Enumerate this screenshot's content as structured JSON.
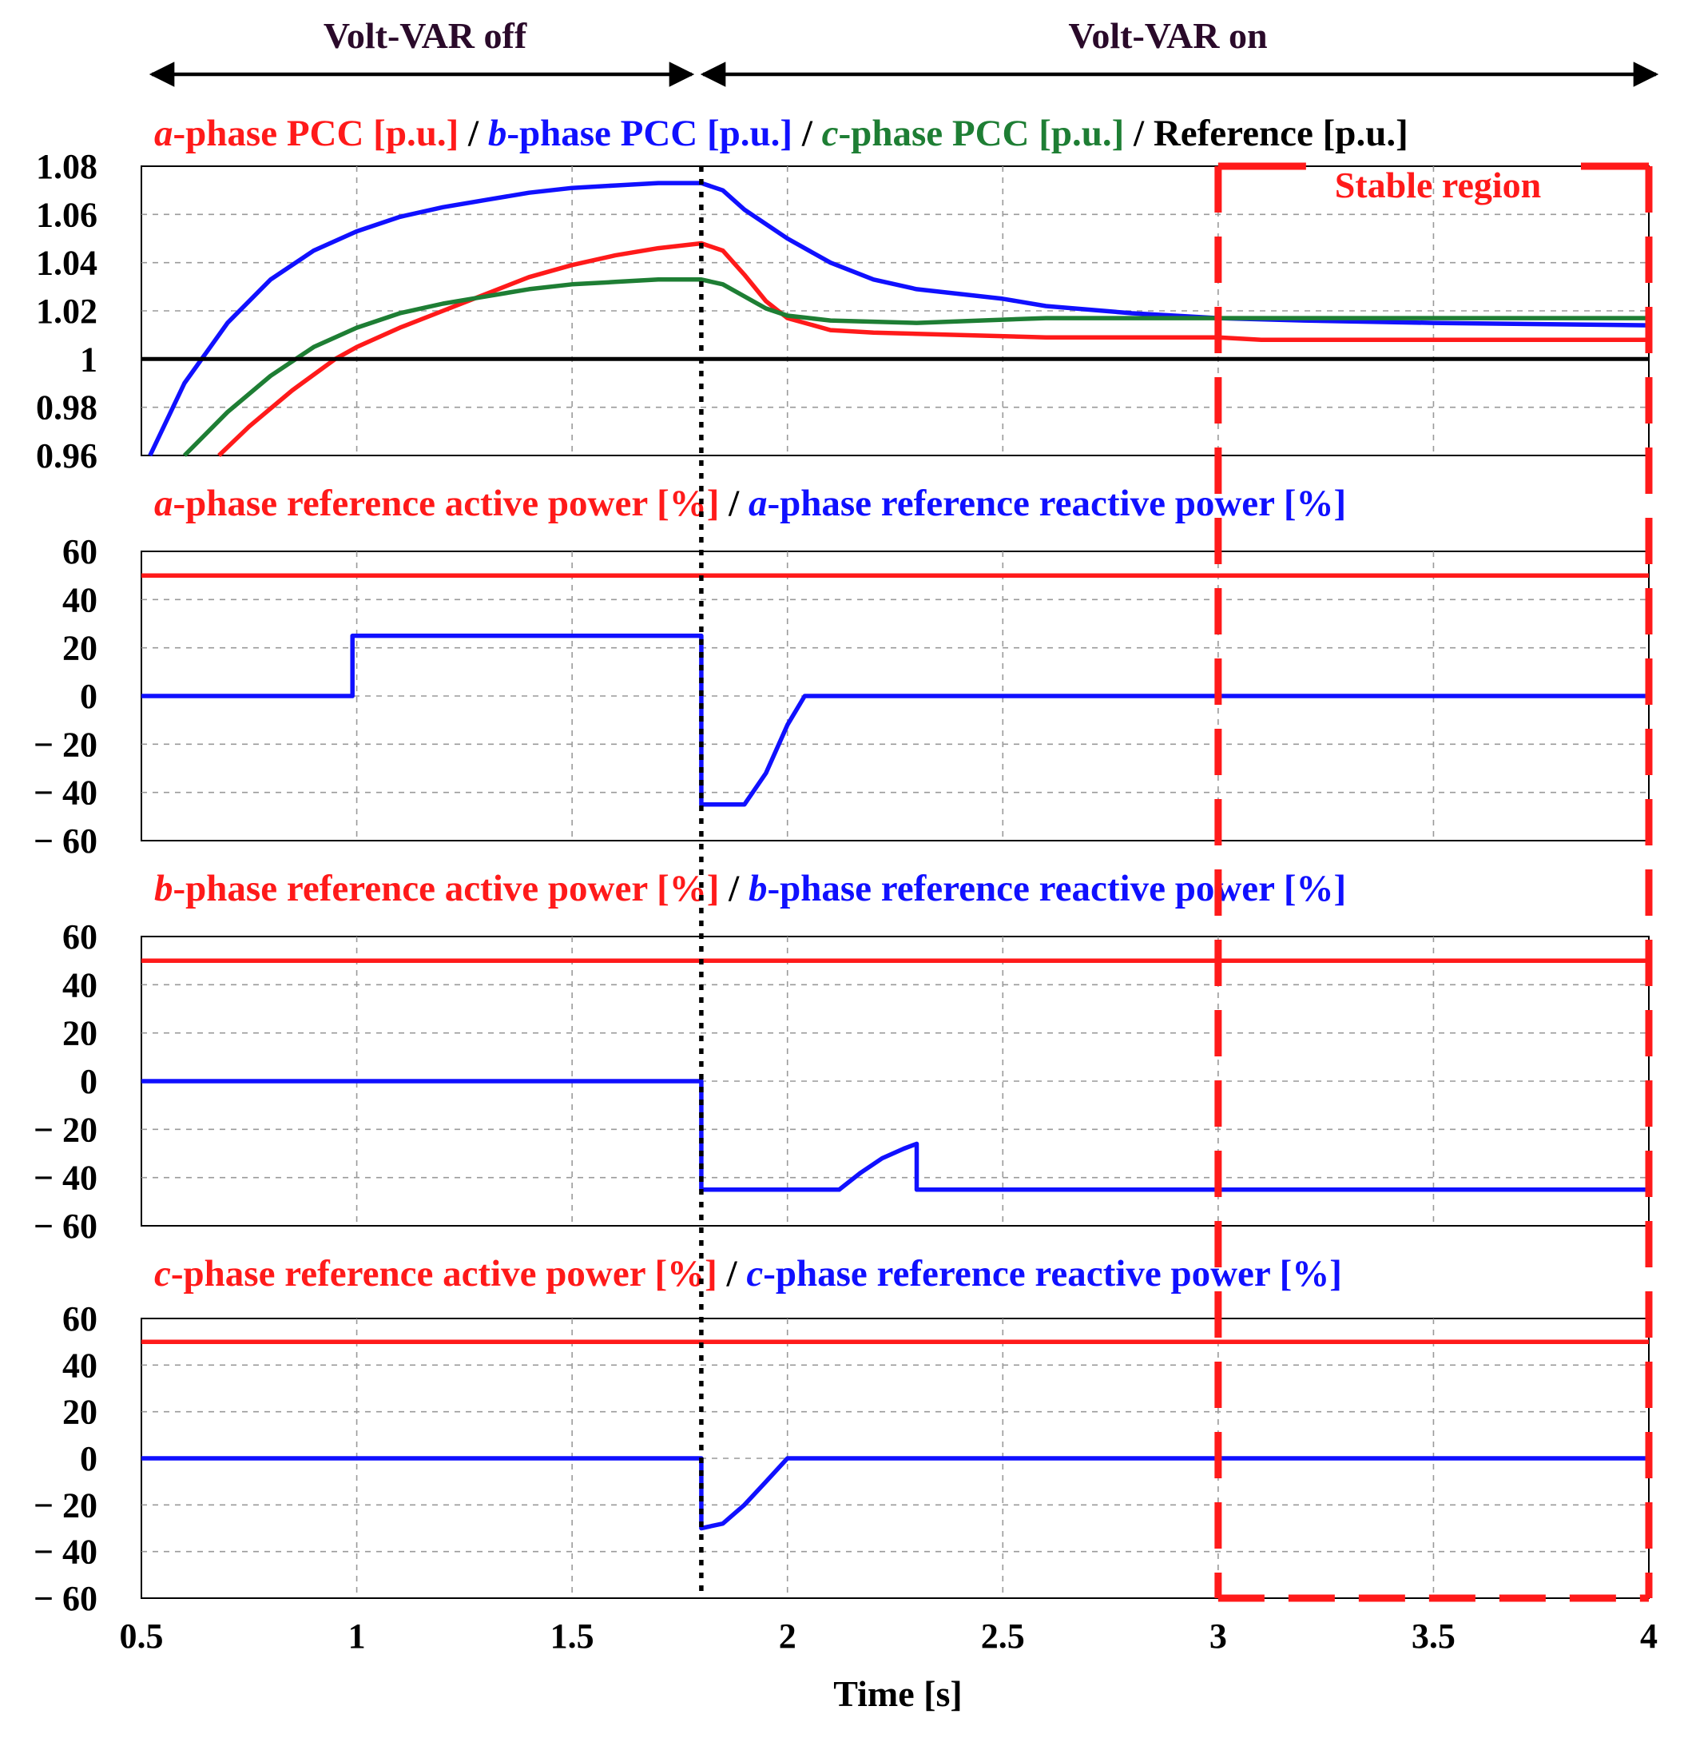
{
  "colors": {
    "red": "#ff1a1a",
    "blue": "#1010ff",
    "green": "#1e7e34",
    "black": "#000000",
    "region": "#ff1a1a",
    "grid": "#9a9a9a"
  },
  "header": {
    "left_label": "Volt-VAR off",
    "right_label": "Volt-VAR on"
  },
  "x_axis": {
    "label": "Time [s]",
    "ticks": [
      0.5,
      1,
      1.5,
      2,
      2.5,
      3,
      3.5,
      4
    ],
    "tick_labels": [
      "0.5",
      "1",
      "1.5",
      "2",
      "2.5",
      "3",
      "3.5",
      "4"
    ],
    "range": [
      0.5,
      4
    ],
    "switch_time": 1.8
  },
  "region": {
    "label": "Stable region",
    "x_range": [
      3.0,
      4.0
    ]
  },
  "chart_data": [
    {
      "type": "line",
      "legend_parts": [
        {
          "italic": "a",
          "text": "-phase PCC [p.u.]",
          "color": "red"
        },
        {
          "italic": "",
          "text": " / ",
          "color": "black"
        },
        {
          "italic": "b",
          "text": "-phase PCC [p.u.]",
          "color": "blue"
        },
        {
          "italic": "",
          "text": " / ",
          "color": "black"
        },
        {
          "italic": "c",
          "text": "-phase PCC [p.u.]",
          "color": "green"
        },
        {
          "italic": "",
          "text": " / Reference [p.u.]",
          "color": "black"
        }
      ],
      "ylim": [
        0.96,
        1.08
      ],
      "yticks": [
        0.96,
        0.98,
        1,
        1.02,
        1.04,
        1.06,
        1.08
      ],
      "ytick_labels": [
        "0.96",
        "0.98",
        "1",
        "1.02",
        "1.04",
        "1.06",
        "1.08"
      ],
      "series": [
        {
          "color": "red",
          "points": [
            [
              0.68,
              0.96
            ],
            [
              0.75,
              0.972
            ],
            [
              0.85,
              0.987
            ],
            [
              0.95,
              1.0
            ],
            [
              1.0,
              1.005
            ],
            [
              1.1,
              1.013
            ],
            [
              1.2,
              1.02
            ],
            [
              1.3,
              1.027
            ],
            [
              1.4,
              1.034
            ],
            [
              1.5,
              1.039
            ],
            [
              1.6,
              1.043
            ],
            [
              1.7,
              1.046
            ],
            [
              1.8,
              1.048
            ],
            [
              1.85,
              1.045
            ],
            [
              1.9,
              1.035
            ],
            [
              1.95,
              1.024
            ],
            [
              2.0,
              1.017
            ],
            [
              2.1,
              1.012
            ],
            [
              2.2,
              1.011
            ],
            [
              2.4,
              1.01
            ],
            [
              2.6,
              1.009
            ],
            [
              3.0,
              1.009
            ],
            [
              3.1,
              1.008
            ],
            [
              4.0,
              1.008
            ]
          ]
        },
        {
          "color": "blue",
          "points": [
            [
              0.52,
              0.96
            ],
            [
              0.6,
              0.99
            ],
            [
              0.7,
              1.015
            ],
            [
              0.8,
              1.033
            ],
            [
              0.9,
              1.045
            ],
            [
              1.0,
              1.053
            ],
            [
              1.1,
              1.059
            ],
            [
              1.2,
              1.063
            ],
            [
              1.3,
              1.066
            ],
            [
              1.4,
              1.069
            ],
            [
              1.5,
              1.071
            ],
            [
              1.6,
              1.072
            ],
            [
              1.7,
              1.073
            ],
            [
              1.8,
              1.073
            ],
            [
              1.85,
              1.07
            ],
            [
              1.9,
              1.062
            ],
            [
              2.0,
              1.05
            ],
            [
              2.1,
              1.04
            ],
            [
              2.2,
              1.033
            ],
            [
              2.3,
              1.029
            ],
            [
              2.5,
              1.025
            ],
            [
              2.6,
              1.022
            ],
            [
              2.8,
              1.019
            ],
            [
              3.0,
              1.017
            ],
            [
              3.2,
              1.016
            ],
            [
              3.5,
              1.015
            ],
            [
              4.0,
              1.014
            ]
          ]
        },
        {
          "color": "green",
          "points": [
            [
              0.6,
              0.96
            ],
            [
              0.7,
              0.978
            ],
            [
              0.8,
              0.993
            ],
            [
              0.9,
              1.005
            ],
            [
              1.0,
              1.013
            ],
            [
              1.1,
              1.019
            ],
            [
              1.2,
              1.023
            ],
            [
              1.3,
              1.026
            ],
            [
              1.4,
              1.029
            ],
            [
              1.5,
              1.031
            ],
            [
              1.6,
              1.032
            ],
            [
              1.7,
              1.033
            ],
            [
              1.8,
              1.033
            ],
            [
              1.85,
              1.031
            ],
            [
              1.9,
              1.026
            ],
            [
              1.95,
              1.021
            ],
            [
              2.0,
              1.018
            ],
            [
              2.1,
              1.016
            ],
            [
              2.3,
              1.015
            ],
            [
              2.6,
              1.017
            ],
            [
              3.0,
              1.017
            ],
            [
              4.0,
              1.017
            ]
          ]
        },
        {
          "color": "black",
          "points": [
            [
              0.5,
              1.0
            ],
            [
              4.0,
              1.0
            ]
          ]
        }
      ]
    },
    {
      "type": "line",
      "legend_parts": [
        {
          "italic": "a",
          "text": "-phase reference active power [%]",
          "color": "red"
        },
        {
          "italic": "",
          "text": " / ",
          "color": "black"
        },
        {
          "italic": "a",
          "text": "-phase reference reactive power [%]",
          "color": "blue"
        }
      ],
      "ylim": [
        -60,
        60
      ],
      "yticks": [
        -60,
        -40,
        -20,
        0,
        20,
        40,
        60
      ],
      "ytick_labels": [
        "− 60",
        "− 40",
        "− 20",
        "0",
        "20",
        "40",
        "60"
      ],
      "series": [
        {
          "color": "red",
          "points": [
            [
              0.5,
              50
            ],
            [
              4.0,
              50
            ]
          ]
        },
        {
          "color": "blue",
          "points": [
            [
              0.5,
              0
            ],
            [
              0.99,
              0
            ],
            [
              0.99,
              25
            ],
            [
              1.8,
              25
            ],
            [
              1.8,
              -45
            ],
            [
              1.9,
              -45
            ],
            [
              1.95,
              -32
            ],
            [
              2.0,
              -12
            ],
            [
              2.04,
              0
            ],
            [
              4.0,
              0
            ]
          ]
        }
      ]
    },
    {
      "type": "line",
      "legend_parts": [
        {
          "italic": "b",
          "text": "-phase reference active power [%]",
          "color": "red"
        },
        {
          "italic": "",
          "text": " / ",
          "color": "black"
        },
        {
          "italic": "b",
          "text": "-phase reference reactive power [%]",
          "color": "blue"
        }
      ],
      "ylim": [
        -60,
        60
      ],
      "yticks": [
        -60,
        -40,
        -20,
        0,
        20,
        40,
        60
      ],
      "ytick_labels": [
        "− 60",
        "− 40",
        "− 20",
        "0",
        "20",
        "40",
        "60"
      ],
      "series": [
        {
          "color": "red",
          "points": [
            [
              0.5,
              50
            ],
            [
              4.0,
              50
            ]
          ]
        },
        {
          "color": "blue",
          "points": [
            [
              0.5,
              0
            ],
            [
              1.8,
              0
            ],
            [
              1.8,
              -45
            ],
            [
              2.12,
              -45
            ],
            [
              2.17,
              -38
            ],
            [
              2.22,
              -32
            ],
            [
              2.27,
              -28
            ],
            [
              2.3,
              -26
            ],
            [
              2.3,
              -45
            ],
            [
              4.0,
              -45
            ]
          ]
        }
      ]
    },
    {
      "type": "line",
      "legend_parts": [
        {
          "italic": "c",
          "text": "-phase reference active power [%]",
          "color": "red"
        },
        {
          "italic": "",
          "text": " / ",
          "color": "black"
        },
        {
          "italic": "c",
          "text": "-phase reference reactive power [%]",
          "color": "blue"
        }
      ],
      "ylim": [
        -60,
        60
      ],
      "yticks": [
        -60,
        -40,
        -20,
        0,
        20,
        40,
        60
      ],
      "ytick_labels": [
        "− 60",
        "− 40",
        "− 20",
        "0",
        "20",
        "40",
        "60"
      ],
      "series": [
        {
          "color": "red",
          "points": [
            [
              0.5,
              50
            ],
            [
              4.0,
              50
            ]
          ]
        },
        {
          "color": "blue",
          "points": [
            [
              0.5,
              0
            ],
            [
              1.8,
              0
            ],
            [
              1.8,
              -30
            ],
            [
              1.85,
              -28
            ],
            [
              1.9,
              -20
            ],
            [
              1.95,
              -10
            ],
            [
              2.0,
              0
            ],
            [
              4.0,
              0
            ]
          ]
        }
      ]
    }
  ]
}
